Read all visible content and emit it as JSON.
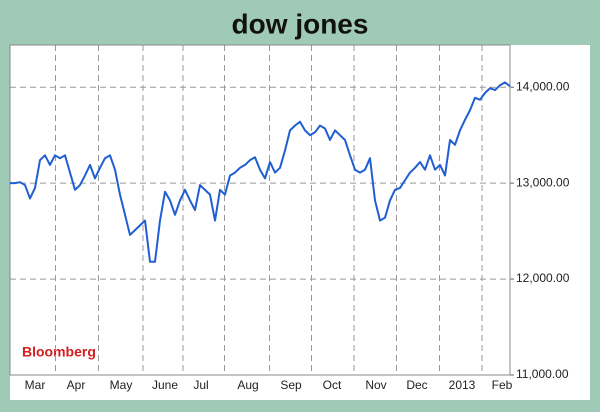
{
  "chart_data": {
    "type": "line",
    "title": "dow jones",
    "source": "Bloomberg",
    "xlim": [
      0,
      100
    ],
    "xticks": [
      {
        "value": 5,
        "label": "Mar"
      },
      {
        "value": 13.2,
        "label": "Apr"
      },
      {
        "value": 22.2,
        "label": "May"
      },
      {
        "value": 31,
        "label": "June"
      },
      {
        "value": 38.2,
        "label": "Jul"
      },
      {
        "value": 47.6,
        "label": "Aug"
      },
      {
        "value": 56.2,
        "label": "Sep"
      },
      {
        "value": 64.4,
        "label": "Oct"
      },
      {
        "value": 73.2,
        "label": "Nov"
      },
      {
        "value": 81.4,
        "label": "Dec"
      },
      {
        "value": 90.4,
        "label": "2013"
      },
      {
        "value": 98.4,
        "label": "Feb"
      }
    ],
    "ylim": [
      11000,
      14440
    ],
    "yticks": [
      {
        "value": 11000,
        "label": "11,000.00"
      },
      {
        "value": 12000,
        "label": "12,000.00"
      },
      {
        "value": 13000,
        "label": "13,000.00"
      },
      {
        "value": 14000,
        "label": "14,000.00"
      }
    ],
    "grid": true,
    "series": [
      {
        "color": "#1f5fd1",
        "values": [
          13000,
          13000,
          13010,
          12980,
          12840,
          12950,
          13240,
          13290,
          13190,
          13290,
          13260,
          13290,
          13110,
          12930,
          12980,
          13080,
          13190,
          13050,
          13160,
          13260,
          13290,
          13140,
          12880,
          12670,
          12460,
          12510,
          12560,
          12610,
          12180,
          12180,
          12610,
          12910,
          12820,
          12670,
          12820,
          12930,
          12820,
          12720,
          12980,
          12930,
          12880,
          12610,
          12930,
          12880,
          13080,
          13110,
          13160,
          13190,
          13240,
          13270,
          13140,
          13050,
          13220,
          13110,
          13160,
          13340,
          13550,
          13600,
          13640,
          13550,
          13500,
          13530,
          13600,
          13570,
          13450,
          13550,
          13500,
          13450,
          13290,
          13140,
          13110,
          13140,
          13260,
          12820,
          12610,
          12640,
          12820,
          12930,
          12950,
          13030,
          13110,
          13160,
          13220,
          13140,
          13290,
          13140,
          13190,
          13080,
          13450,
          13400,
          13550,
          13660,
          13760,
          13890,
          13870,
          13940,
          13990,
          13970,
          14020,
          14050,
          14010
        ]
      }
    ]
  }
}
